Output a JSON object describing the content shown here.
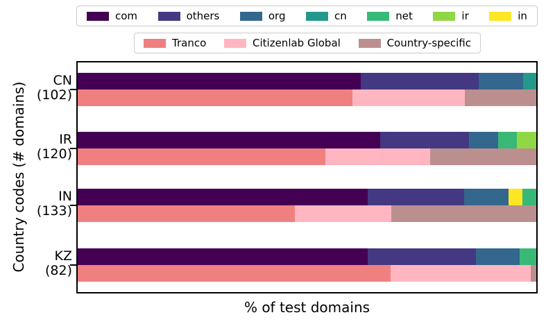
{
  "figure": {
    "xlabel": "% of test domains",
    "ylabel": "Country codes (# domains)"
  },
  "colors": {
    "tld": {
      "com": "#440154",
      "others": "#453882",
      "org": "#33678d",
      "cn": "#25988c",
      "net": "#38b977",
      "ir": "#8fd744",
      "in": "#fde725"
    },
    "source": {
      "Tranco": "#f08080",
      "Citizenlab Global": "#ffb6c1",
      "Country-specific": "#bc8f8f"
    },
    "axis": "#000000",
    "legend_border": "#cccccc"
  },
  "chart_data": {
    "type": "bar",
    "orientation": "horizontal",
    "stacked": true,
    "unit": "percent",
    "title": "",
    "xlabel": "% of test domains",
    "ylabel": "Country codes (# domains)",
    "xlim": [
      0,
      100
    ],
    "grid": false,
    "legend_tld": [
      "com",
      "others",
      "org",
      "cn",
      "net",
      "ir",
      "in"
    ],
    "legend_source": [
      "Tranco",
      "Citizenlab Global",
      "Country-specific"
    ],
    "categories": [
      "CN (102)",
      "IR (120)",
      "IN (133)",
      "KZ (82)"
    ],
    "rows": [
      {
        "code": "CN",
        "count": 102,
        "label": "CN",
        "sublabel": "(102)",
        "tld_segments": [
          [
            "com",
            61.8
          ],
          [
            "others",
            25.6
          ],
          [
            "org",
            9.7
          ],
          [
            "cn",
            2.9
          ]
        ],
        "source_segments": [
          [
            "Tranco",
            59.9
          ],
          [
            "Citizenlab Global",
            24.5
          ],
          [
            "Country-specific",
            15.6
          ]
        ]
      },
      {
        "code": "IR",
        "count": 120,
        "label": "IR",
        "sublabel": "(120)",
        "tld_segments": [
          [
            "com",
            65.9
          ],
          [
            "others",
            19.4
          ],
          [
            "org",
            6.4
          ],
          [
            "net",
            4.1
          ],
          [
            "ir",
            4.2
          ]
        ],
        "source_segments": [
          [
            "Tranco",
            54.0
          ],
          [
            "Citizenlab Global",
            22.9
          ],
          [
            "Country-specific",
            23.1
          ]
        ]
      },
      {
        "code": "IN",
        "count": 133,
        "label": "IN",
        "sublabel": "(133)",
        "tld_segments": [
          [
            "com",
            63.2
          ],
          [
            "others",
            21.0
          ],
          [
            "org",
            9.8
          ],
          [
            "in",
            3.0
          ],
          [
            "net",
            3.0
          ]
        ],
        "source_segments": [
          [
            "Tranco",
            47.4
          ],
          [
            "Citizenlab Global",
            21.0
          ],
          [
            "Country-specific",
            31.6
          ]
        ]
      },
      {
        "code": "KZ",
        "count": 82,
        "label": "KZ",
        "sublabel": "(82)",
        "tld_segments": [
          [
            "com",
            63.3
          ],
          [
            "others",
            23.5
          ],
          [
            "org",
            9.5
          ],
          [
            "net",
            3.7
          ]
        ],
        "source_segments": [
          [
            "Tranco",
            68.3
          ],
          [
            "Citizenlab Global",
            30.5
          ],
          [
            "Country-specific",
            1.2
          ]
        ]
      }
    ]
  }
}
